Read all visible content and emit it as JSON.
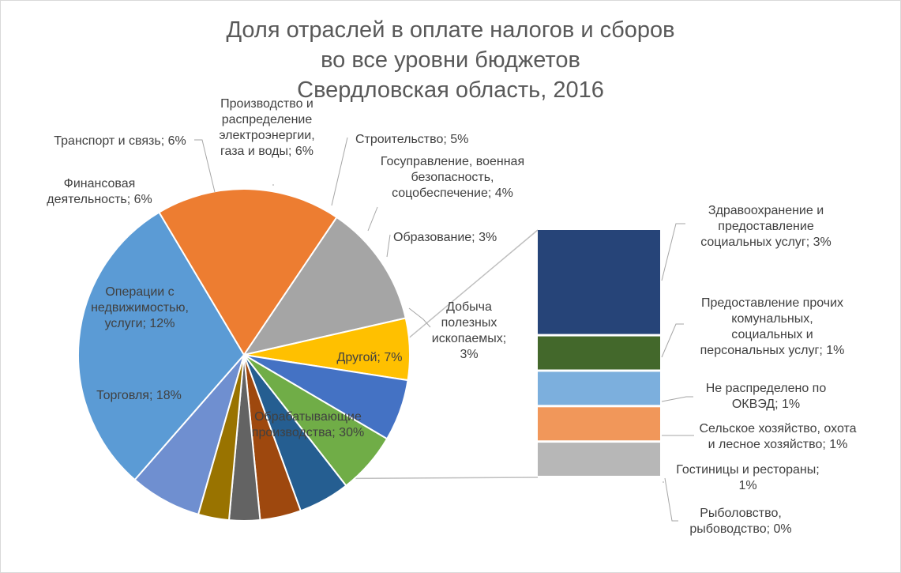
{
  "chart_data": {
    "type": "pie",
    "subtype": "bar-of-pie",
    "title_lines": [
      "Доля отраслей в оплате налогов и сборов",
      "во все уровни бюджетов",
      "Свердловская область, 2016"
    ],
    "legend": "none",
    "pie": [
      {
        "label_lines": [
          "Другой; 7%"
        ],
        "value": 7,
        "color": "#6f8fd0",
        "is_other": true
      },
      {
        "label_lines": [
          "Обрабатывающие",
          "производства; 30%"
        ],
        "value": 30,
        "color": "#5b9bd5"
      },
      {
        "label_lines": [
          "Торговля; 18%"
        ],
        "value": 18,
        "color": "#ed7d31"
      },
      {
        "label_lines": [
          "Операции с",
          "недвижимостью,",
          "услуги; 12%"
        ],
        "value": 12,
        "color": "#a5a5a5"
      },
      {
        "label_lines": [
          "Финансовая",
          "деятельность; 6%"
        ],
        "value": 6,
        "color": "#ffc000"
      },
      {
        "label_lines": [
          "Транспорт и связь; 6%"
        ],
        "value": 6,
        "color": "#4472c4"
      },
      {
        "label_lines": [
          "Производство и",
          "распределение",
          "электроэнергии,",
          "газа и воды; 6%"
        ],
        "value": 6,
        "color": "#70ad47"
      },
      {
        "label_lines": [
          "Строительство; 5%"
        ],
        "value": 5,
        "color": "#255e91"
      },
      {
        "label_lines": [
          "Госуправление, военная",
          "безопасность,",
          "соцобеспечение; 4%"
        ],
        "value": 4,
        "color": "#9e480e"
      },
      {
        "label_lines": [
          "Образование; 3%"
        ],
        "value": 3,
        "color": "#636363"
      },
      {
        "label_lines": [
          "Добыча",
          "полезных",
          "ископаемых;",
          "3%"
        ],
        "value": 3,
        "color": "#997300"
      }
    ],
    "bar": [
      {
        "label_lines": [
          "Здравоохранение и",
          "предоставление",
          "социальных услуг; 3%"
        ],
        "value": 3,
        "color": "#264478"
      },
      {
        "label_lines": [
          "Предоставление прочих",
          "комунальных,",
          "социальных и",
          "персональных услуг; 1%"
        ],
        "value": 1,
        "color": "#43682b"
      },
      {
        "label_lines": [
          "Не распределено по",
          "ОКВЭД; 1%"
        ],
        "value": 1,
        "color": "#7cafdd"
      },
      {
        "label_lines": [
          "Сельское хозяйство, охота",
          "и лесное хозяйство; 1%"
        ],
        "value": 1,
        "color": "#f1975a"
      },
      {
        "label_lines": [
          "Гостиницы и рестораны;",
          "1%"
        ],
        "value": 1,
        "color": "#b7b7b7"
      },
      {
        "label_lines": [
          "Рыболовство,",
          "рыбоводство; 0%"
        ],
        "value": 0,
        "color": "#d9d9d9"
      }
    ]
  }
}
